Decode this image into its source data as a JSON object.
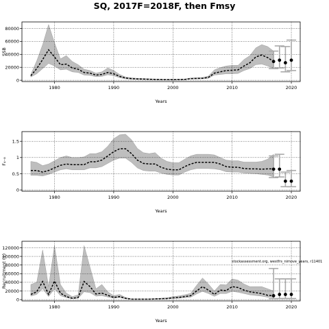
{
  "title": "SQ, 2017F=2018F, then Fmsy",
  "colors": {
    "band": "#bebebe",
    "median": "#000000",
    "projection": "#a9a9a9",
    "grid": "#000000"
  },
  "chart_data": [
    {
      "type": "line",
      "xlabel": "Years",
      "ylabel": "SSB",
      "xlim": [
        1974.5,
        2021.5
      ],
      "ylim": [
        -2000,
        90000
      ],
      "xticks": [
        1980,
        1990,
        2000,
        2010,
        2020
      ],
      "yticks": [
        0,
        20000,
        40000,
        60000,
        80000
      ],
      "ytick_labels": [
        "0",
        "20000",
        "40000",
        "60000",
        "80000"
      ],
      "grid": true,
      "x": [
        1976,
        1977,
        1978,
        1979,
        1980,
        1981,
        1982,
        1983,
        1984,
        1985,
        1986,
        1987,
        1988,
        1989,
        1990,
        1991,
        1992,
        1993,
        1994,
        1995,
        1996,
        1997,
        1998,
        1999,
        2000,
        2001,
        2002,
        2003,
        2004,
        2005,
        2006,
        2007,
        2008,
        2009,
        2010,
        2011,
        2012,
        2013,
        2014,
        2015,
        2016,
        2017
      ],
      "median": [
        7000,
        18000,
        32000,
        47000,
        36000,
        24000,
        25000,
        19000,
        17000,
        12000,
        11000,
        8000,
        9000,
        12000,
        10000,
        6000,
        3500,
        2500,
        2000,
        1800,
        1500,
        1200,
        1000,
        900,
        900,
        1000,
        1200,
        2500,
        2800,
        3000,
        4500,
        11000,
        13000,
        15000,
        15500,
        16000,
        22000,
        27000,
        36000,
        39000,
        35000,
        29000
      ],
      "lower": [
        5000,
        10000,
        18000,
        26000,
        22000,
        16000,
        17000,
        13000,
        12000,
        8000,
        7500,
        5500,
        6000,
        8500,
        7000,
        4000,
        2200,
        1500,
        1200,
        1000,
        900,
        700,
        600,
        500,
        500,
        600,
        800,
        1800,
        2000,
        2200,
        3000,
        8000,
        9000,
        10000,
        10000,
        10500,
        15000,
        18000,
        24000,
        25000,
        22000,
        18000
      ],
      "upper": [
        9000,
        30000,
        55000,
        86000,
        58000,
        33000,
        38000,
        29000,
        24000,
        17000,
        15000,
        11000,
        13000,
        19000,
        15000,
        9000,
        5000,
        3800,
        3000,
        2800,
        2400,
        2000,
        1700,
        1600,
        1600,
        1700,
        2000,
        3500,
        4000,
        4300,
        6500,
        16000,
        19500,
        22000,
        23000,
        23000,
        32000,
        38000,
        50000,
        55000,
        52000,
        45000
      ],
      "projection": [
        {
          "x": 2017,
          "median": 29000,
          "lower": 18000,
          "upper": 45000
        },
        {
          "x": 2018,
          "median": 31000,
          "lower": 19000,
          "upper": 53000
        },
        {
          "x": 2019,
          "median": 27000,
          "lower": 13000,
          "upper": 52000
        },
        {
          "x": 2020,
          "median": 31000,
          "lower": 15000,
          "upper": 62000
        }
      ]
    },
    {
      "type": "line",
      "xlabel": "Years",
      "ylabel": "F₄₋₈",
      "xlim": [
        1974.5,
        2021.5
      ],
      "ylim": [
        -0.04,
        1.8
      ],
      "xticks": [
        1980,
        1990,
        2000,
        2010,
        2020
      ],
      "yticks": [
        0,
        0.5,
        1,
        1.5
      ],
      "ytick_labels": [
        "0",
        "0.5",
        "1",
        "1.5"
      ],
      "grid": true,
      "x": [
        1976,
        1977,
        1978,
        1979,
        1980,
        1981,
        1982,
        1983,
        1984,
        1985,
        1986,
        1987,
        1988,
        1989,
        1990,
        1991,
        1992,
        1993,
        1994,
        1995,
        1996,
        1997,
        1998,
        1999,
        2000,
        2001,
        2002,
        2003,
        2004,
        2005,
        2006,
        2007,
        2008,
        2009,
        2010,
        2011,
        2012,
        2013,
        2014,
        2015,
        2016,
        2017
      ],
      "median": [
        0.6,
        0.6,
        0.55,
        0.6,
        0.68,
        0.76,
        0.8,
        0.78,
        0.78,
        0.78,
        0.87,
        0.87,
        0.92,
        1.05,
        1.18,
        1.27,
        1.27,
        1.12,
        0.92,
        0.82,
        0.8,
        0.8,
        0.7,
        0.64,
        0.62,
        0.62,
        0.72,
        0.8,
        0.85,
        0.85,
        0.85,
        0.85,
        0.8,
        0.72,
        0.7,
        0.7,
        0.66,
        0.65,
        0.65,
        0.64,
        0.65,
        0.65
      ],
      "lower": [
        0.45,
        0.45,
        0.43,
        0.48,
        0.55,
        0.62,
        0.65,
        0.62,
        0.62,
        0.62,
        0.68,
        0.68,
        0.72,
        0.82,
        0.92,
        0.98,
        0.98,
        0.85,
        0.68,
        0.6,
        0.58,
        0.58,
        0.52,
        0.48,
        0.46,
        0.46,
        0.55,
        0.62,
        0.66,
        0.66,
        0.66,
        0.65,
        0.62,
        0.56,
        0.55,
        0.55,
        0.52,
        0.51,
        0.5,
        0.48,
        0.46,
        0.4
      ],
      "upper": [
        0.88,
        0.85,
        0.75,
        0.8,
        0.9,
        1.0,
        1.05,
        1.0,
        1.0,
        1.02,
        1.12,
        1.12,
        1.18,
        1.35,
        1.58,
        1.7,
        1.72,
        1.55,
        1.28,
        1.15,
        1.12,
        1.15,
        0.98,
        0.88,
        0.84,
        0.84,
        0.95,
        1.05,
        1.1,
        1.1,
        1.1,
        1.08,
        1.0,
        0.92,
        0.9,
        0.9,
        0.86,
        0.86,
        0.86,
        0.88,
        0.95,
        1.1
      ],
      "projection": [
        {
          "x": 2017,
          "median": 0.64,
          "lower": 0.38,
          "upper": 1.05
        },
        {
          "x": 2018,
          "median": 0.64,
          "lower": 0.4,
          "upper": 1.1
        },
        {
          "x": 2019,
          "median": 0.27,
          "lower": 0.1,
          "upper": 0.55
        },
        {
          "x": 2020,
          "median": 0.27,
          "lower": 0.1,
          "upper": 0.6
        }
      ]
    },
    {
      "type": "line",
      "xlabel": "Years",
      "ylabel": "Recruitment (1)",
      "xlim": [
        1974.5,
        2021.5
      ],
      "ylim": [
        -3000,
        135000
      ],
      "xticks": [
        1980,
        1990,
        2000,
        2010,
        2020
      ],
      "yticks": [
        0,
        20000,
        40000,
        60000,
        80000,
        100000,
        120000
      ],
      "ytick_labels": [
        "0",
        "20000",
        "40000",
        "60000",
        "80000",
        "100000",
        "120000"
      ],
      "grid": true,
      "annotation": "stockassessment.org, westfrs_nimove_years, r11401",
      "x": [
        1976,
        1977,
        1978,
        1979,
        1980,
        1981,
        1982,
        1983,
        1984,
        1985,
        1986,
        1987,
        1988,
        1989,
        1990,
        1991,
        1992,
        1993,
        1994,
        1995,
        1996,
        1997,
        1998,
        1999,
        2000,
        2001,
        2002,
        2003,
        2004,
        2005,
        2006,
        2007,
        2008,
        2009,
        2010,
        2011,
        2012,
        2013,
        2014,
        2015,
        2016,
        2017
      ],
      "median": [
        12000,
        18000,
        42000,
        12000,
        43000,
        15000,
        7000,
        3000,
        5000,
        42000,
        30000,
        13000,
        15000,
        10000,
        5000,
        7000,
        3000,
        1000,
        1000,
        1000,
        1000,
        1500,
        2000,
        2500,
        4000,
        5000,
        7000,
        9000,
        20000,
        30000,
        22000,
        12000,
        22000,
        21000,
        30000,
        28000,
        22000,
        18000,
        16000,
        14000,
        10000,
        9000
      ],
      "lower": [
        8000,
        12000,
        25000,
        7000,
        25000,
        9000,
        4500,
        2000,
        3000,
        18000,
        16000,
        8000,
        9000,
        6000,
        3200,
        4500,
        2000,
        700,
        700,
        700,
        700,
        1000,
        1300,
        1600,
        2500,
        3200,
        4500,
        5500,
        13000,
        19000,
        14000,
        7500,
        14000,
        14000,
        19000,
        17000,
        14000,
        11000,
        9500,
        8000,
        5500,
        4500
      ],
      "upper": [
        35000,
        40000,
        115000,
        30000,
        125000,
        35000,
        15000,
        7000,
        11000,
        125000,
        75000,
        25000,
        35000,
        18000,
        9000,
        12000,
        5000,
        1800,
        1800,
        1800,
        1800,
        2500,
        3300,
        4200,
        7000,
        8500,
        11000,
        14500,
        33000,
        50000,
        36000,
        20000,
        35000,
        34000,
        48000,
        45000,
        36000,
        30000,
        30000,
        30000,
        25000,
        20000
      ],
      "projection": [
        {
          "x": 2017,
          "median": 9000,
          "lower": 2000,
          "upper": 72000
        },
        {
          "x": 2018,
          "median": 12000,
          "lower": 2500,
          "upper": 48000
        },
        {
          "x": 2019,
          "median": 12000,
          "lower": 2500,
          "upper": 48000
        },
        {
          "x": 2020,
          "median": 12000,
          "lower": 2500,
          "upper": 48000
        }
      ]
    }
  ]
}
